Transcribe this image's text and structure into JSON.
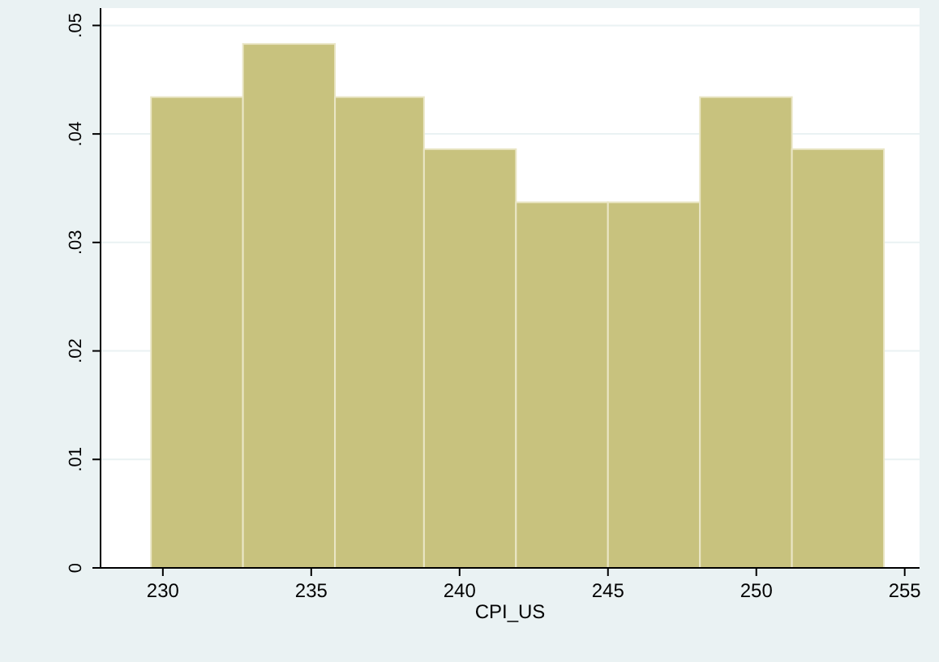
{
  "chart_data": {
    "type": "histogram",
    "xlabel": "CPI_US",
    "bins": [
      229.6,
      232.7,
      235.8,
      238.8,
      241.9,
      245.0,
      248.1,
      251.2,
      254.3
    ],
    "values": [
      0.0434,
      0.0483,
      0.0434,
      0.0386,
      0.0337,
      0.0337,
      0.0434,
      0.0386
    ],
    "color": "#c8c27e",
    "xlim": [
      227.9,
      255.5
    ],
    "xticks": [
      230,
      235,
      240,
      245,
      250,
      255
    ],
    "ylim": [
      0,
      0.0516
    ],
    "yticks": [
      {
        "value": 0,
        "label": "0"
      },
      {
        "value": 0.01,
        "label": ".01"
      },
      {
        "value": 0.02,
        "label": ".02"
      },
      {
        "value": 0.03,
        "label": ".03"
      },
      {
        "value": 0.04,
        "label": ".04"
      },
      {
        "value": 0.05,
        "label": ".05"
      }
    ],
    "grid": "y"
  }
}
